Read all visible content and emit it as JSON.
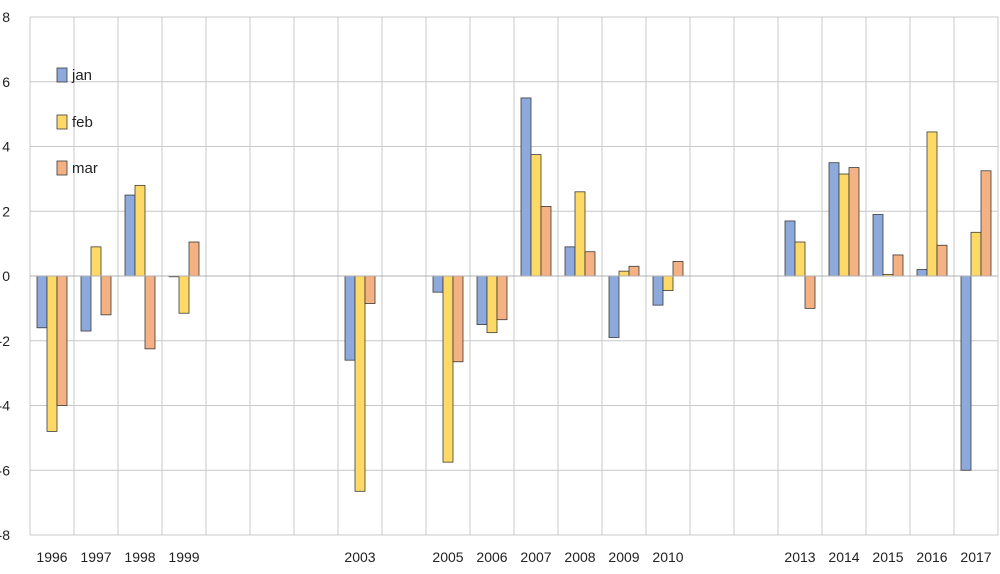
{
  "chart_data": {
    "type": "bar",
    "title": "",
    "xlabel": "",
    "ylabel": "",
    "ylim": [
      -8,
      8
    ],
    "yticks": [
      -8,
      -6,
      -4,
      -2,
      0,
      2,
      4,
      6,
      8
    ],
    "ytick_labels": [
      "-8",
      "-6",
      "-4",
      "-2",
      "0",
      "2",
      "4",
      "6",
      "8"
    ],
    "grid": true,
    "legend_position": "top-left",
    "categories": [
      "1996",
      "1997",
      "1998",
      "1999",
      "",
      "",
      "",
      "2003",
      "",
      "2005",
      "2006",
      "2007",
      "2008",
      "2009",
      "2010",
      "",
      "",
      "2013",
      "2014",
      "2015",
      "2016",
      "2017"
    ],
    "series": [
      {
        "name": "jan",
        "color": "#8ea9db",
        "values": [
          -1.6,
          -1.7,
          2.5,
          0.0,
          null,
          null,
          null,
          -2.6,
          null,
          -0.5,
          -1.5,
          5.5,
          0.9,
          -1.9,
          -0.9,
          null,
          null,
          1.7,
          3.5,
          1.9,
          0.2,
          -6.0
        ]
      },
      {
        "name": "feb",
        "color": "#ffd966",
        "values": [
          -4.8,
          0.9,
          2.8,
          -1.15,
          null,
          null,
          null,
          -6.65,
          null,
          -5.75,
          -1.75,
          3.75,
          2.6,
          0.15,
          -0.45,
          null,
          null,
          1.05,
          3.15,
          0.05,
          4.45,
          1.35
        ]
      },
      {
        "name": "mar",
        "color": "#f4b183",
        "values": [
          -4.0,
          -1.2,
          -2.25,
          1.05,
          null,
          null,
          null,
          -0.85,
          null,
          -2.65,
          -1.35,
          2.15,
          0.75,
          0.3,
          0.45,
          null,
          null,
          -1.0,
          3.35,
          0.65,
          0.95,
          3.25
        ]
      }
    ]
  }
}
